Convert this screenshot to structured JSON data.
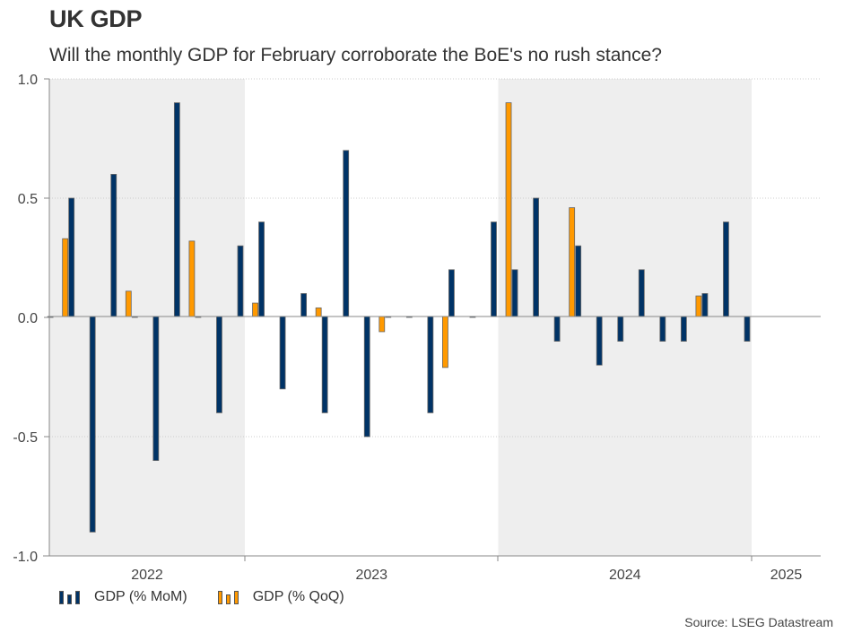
{
  "header": {
    "title": "UK GDP",
    "subtitle": "Will the monthly GDP for February corroborate the BoE's no rush stance?"
  },
  "source": "Source: LSEG Datastream",
  "colors": {
    "mom": "#003366",
    "qoq": "#ff9900",
    "shade": "#eeeeee",
    "axis": "#888888",
    "grid": "#cccccc"
  },
  "chart_data": {
    "type": "bar",
    "title": "UK GDP",
    "subtitle": "Will the monthly GDP for February corroborate the BoE's no rush stance?",
    "xlabel": "",
    "ylabel": "",
    "ylim": [
      -1.0,
      1.0
    ],
    "yticks": [
      "1.0",
      "0.5",
      "0.0",
      "-0.5",
      "-1.0"
    ],
    "ytick_values": [
      1.0,
      0.5,
      0.0,
      -0.5,
      -1.0
    ],
    "grid": true,
    "x_domain": [
      "2022-03",
      "2025-04"
    ],
    "year_labels": [
      {
        "label": "2022",
        "start": "2022-03",
        "end": "2023-01"
      },
      {
        "label": "2023",
        "start": "2023-01",
        "end": "2024-01"
      },
      {
        "label": "2024",
        "start": "2024-01",
        "end": "2025-01"
      },
      {
        "label": "2025",
        "start": "2025-01",
        "end": "2025-04"
      }
    ],
    "shaded_periods": [
      {
        "start": "2022-03",
        "end": "2023-01"
      },
      {
        "start": "2024-01",
        "end": "2025-01"
      }
    ],
    "legend_position": "bottom-left",
    "series": [
      {
        "name": "GDP (% MoM)",
        "color": "#003366",
        "points": [
          {
            "x": "2022-04",
            "y": 0.0
          },
          {
            "x": "2022-05",
            "y": 0.5
          },
          {
            "x": "2022-06",
            "y": -0.9
          },
          {
            "x": "2022-07",
            "y": 0.6
          },
          {
            "x": "2022-08",
            "y": 0.0
          },
          {
            "x": "2022-09",
            "y": -0.6
          },
          {
            "x": "2022-10",
            "y": 0.9
          },
          {
            "x": "2022-11",
            "y": 0.0
          },
          {
            "x": "2022-12",
            "y": -0.4
          },
          {
            "x": "2023-01",
            "y": 0.3
          },
          {
            "x": "2023-02",
            "y": 0.4
          },
          {
            "x": "2023-03",
            "y": -0.3
          },
          {
            "x": "2023-04",
            "y": 0.1
          },
          {
            "x": "2023-05",
            "y": -0.4
          },
          {
            "x": "2023-06",
            "y": 0.7
          },
          {
            "x": "2023-07",
            "y": -0.5
          },
          {
            "x": "2023-08",
            "y": 0.0
          },
          {
            "x": "2023-09",
            "y": 0.0
          },
          {
            "x": "2023-10",
            "y": -0.4
          },
          {
            "x": "2023-11",
            "y": 0.2
          },
          {
            "x": "2023-12",
            "y": 0.0
          },
          {
            "x": "2024-01",
            "y": 0.4
          },
          {
            "x": "2024-02",
            "y": 0.2
          },
          {
            "x": "2024-03",
            "y": 0.5
          },
          {
            "x": "2024-04",
            "y": -0.1
          },
          {
            "x": "2024-05",
            "y": 0.3
          },
          {
            "x": "2024-06",
            "y": -0.2
          },
          {
            "x": "2024-07",
            "y": -0.1
          },
          {
            "x": "2024-08",
            "y": 0.2
          },
          {
            "x": "2024-09",
            "y": -0.1
          },
          {
            "x": "2024-10",
            "y": -0.1
          },
          {
            "x": "2024-11",
            "y": 0.1
          },
          {
            "x": "2024-12",
            "y": 0.4
          },
          {
            "x": "2025-01",
            "y": -0.1
          }
        ]
      },
      {
        "name": "GDP (% QoQ)",
        "color": "#ff9900",
        "points": [
          {
            "x": "2022-05",
            "y": 0.33
          },
          {
            "x": "2022-08",
            "y": 0.11
          },
          {
            "x": "2022-11",
            "y": 0.32
          },
          {
            "x": "2023-02",
            "y": 0.06
          },
          {
            "x": "2023-05",
            "y": 0.04
          },
          {
            "x": "2023-08",
            "y": -0.06
          },
          {
            "x": "2023-11",
            "y": -0.21
          },
          {
            "x": "2024-02",
            "y": 0.9
          },
          {
            "x": "2024-05",
            "y": 0.46
          },
          {
            "x": "2024-11",
            "y": 0.09
          }
        ]
      }
    ]
  },
  "legend": {
    "items": [
      {
        "label": "GDP (% MoM)",
        "icon": "bar-series-icon"
      },
      {
        "label": "GDP (% QoQ)",
        "icon": "bar-series-icon"
      }
    ]
  }
}
